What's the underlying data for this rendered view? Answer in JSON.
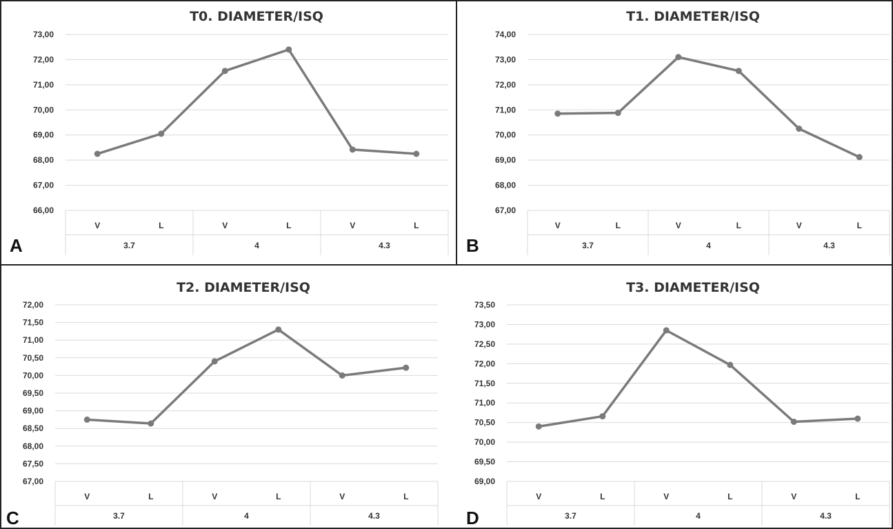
{
  "chart_data": [
    {
      "type": "line",
      "panel": "A",
      "title": "T0. DIAMETER/ISQ",
      "categories": [
        "V",
        "L",
        "V",
        "L",
        "V",
        "L"
      ],
      "groups": [
        "3.7",
        "4",
        "4.3"
      ],
      "ylim": [
        66,
        73
      ],
      "yticks": [
        "66,00",
        "67,00",
        "68,00",
        "69,00",
        "70,00",
        "71,00",
        "72,00",
        "73,00"
      ],
      "series": [
        {
          "values": [
            68.25,
            69.05,
            71.55,
            72.4,
            68.42,
            68.25
          ]
        }
      ],
      "grid": true
    },
    {
      "type": "line",
      "panel": "B",
      "title": "T1. DIAMETER/ISQ",
      "categories": [
        "V",
        "L",
        "V",
        "L",
        "V",
        "L"
      ],
      "groups": [
        "3.7",
        "4",
        "4.3"
      ],
      "ylim": [
        67,
        74
      ],
      "yticks": [
        "67,00",
        "68,00",
        "69,00",
        "70,00",
        "71,00",
        "72,00",
        "73,00",
        "74,00"
      ],
      "series": [
        {
          "values": [
            70.85,
            70.88,
            73.1,
            72.55,
            70.25,
            69.12
          ]
        }
      ],
      "grid": true
    },
    {
      "type": "line",
      "panel": "C",
      "title": "T2. DIAMETER/ISQ",
      "categories": [
        "V",
        "L",
        "V",
        "L",
        "V",
        "L"
      ],
      "groups": [
        "3.7",
        "4",
        "4.3"
      ],
      "ylim": [
        67,
        72
      ],
      "yticks": [
        "67,00",
        "67,50",
        "68,00",
        "68,50",
        "69,00",
        "69,50",
        "70,00",
        "70,50",
        "71,00",
        "71,50",
        "72,00"
      ],
      "series": [
        {
          "values": [
            68.75,
            68.64,
            70.4,
            71.3,
            70.0,
            70.22
          ]
        }
      ],
      "grid": true
    },
    {
      "type": "line",
      "panel": "D",
      "title": "T3. DIAMETER/ISQ",
      "categories": [
        "V",
        "L",
        "V",
        "L",
        "V",
        "L"
      ],
      "groups": [
        "3.7",
        "4",
        "4.3"
      ],
      "ylim": [
        69,
        73.5
      ],
      "yticks": [
        "69,00",
        "69,50",
        "70,00",
        "70,50",
        "71,00",
        "71,50",
        "72,00",
        "72,50",
        "73,00",
        "73,50"
      ],
      "series": [
        {
          "values": [
            70.4,
            70.66,
            72.85,
            71.97,
            70.52,
            70.6
          ]
        }
      ],
      "grid": true
    }
  ],
  "colors": {
    "line": "#7a7a7a",
    "grid": "#d9d9d9",
    "frame": "#222222",
    "text": "#333333"
  }
}
